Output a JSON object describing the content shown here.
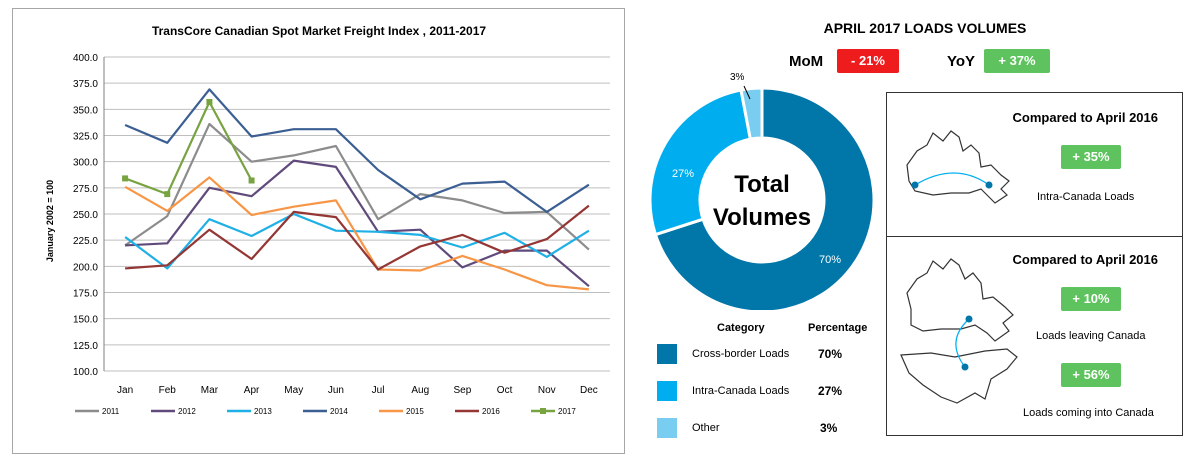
{
  "chart_data": [
    {
      "type": "line",
      "title": "TransCore Canadian Spot Market Freight Index , 2011-2017",
      "ylabel": "January  2002 = 100",
      "xlabel": "",
      "categories": [
        "Jan",
        "Feb",
        "Mar",
        "Apr",
        "May",
        "Jun",
        "Jul",
        "Aug",
        "Sep",
        "Oct",
        "Nov",
        "Dec"
      ],
      "ylim": [
        100,
        400
      ],
      "yticks": [
        "100.0",
        "125.0",
        "150.0",
        "175.0",
        "200.0",
        "225.0",
        "250.0",
        "275.0",
        "300.0",
        "325.0",
        "350.0",
        "375.0",
        "400.0"
      ],
      "grid": true,
      "legend_position": "bottom",
      "series": [
        {
          "name": "2011",
          "color": "#8c8c8c",
          "values": [
            220,
            248,
            336,
            300,
            306,
            315,
            245,
            269,
            263,
            251,
            252,
            216
          ]
        },
        {
          "name": "2012",
          "color": "#604a7b",
          "values": [
            220,
            222,
            275,
            267,
            301,
            295,
            233,
            235,
            199,
            215,
            215,
            181
          ]
        },
        {
          "name": "2013",
          "color": "#1fb0e6",
          "values": [
            228,
            198,
            245,
            229,
            250,
            234,
            233,
            230,
            218,
            232,
            209,
            234
          ]
        },
        {
          "name": "2014",
          "color": "#3b5f93",
          "values": [
            335,
            318,
            369,
            324,
            331,
            331,
            292,
            264,
            279,
            281,
            252,
            278
          ]
        },
        {
          "name": "2015",
          "color": "#f79646",
          "values": [
            276,
            253,
            285,
            249,
            257,
            263,
            197,
            196,
            210,
            197,
            182,
            178
          ]
        },
        {
          "name": "2016",
          "color": "#943634",
          "values": [
            198,
            201,
            235,
            207,
            252,
            247,
            197,
            219,
            230,
            213,
            226,
            258
          ]
        },
        {
          "name": "2017",
          "color": "#77a341",
          "values": [
            284,
            269,
            357,
            282,
            null,
            null,
            null,
            null,
            null,
            null,
            null,
            null
          ],
          "marker": "square"
        }
      ]
    },
    {
      "type": "pie",
      "title": "APRIL 2017 LOADS VOLUMES",
      "center_label": [
        "Total",
        "Volumes"
      ],
      "slices": [
        {
          "label": "Cross-border Loads",
          "value": 70,
          "display": "70%",
          "color": "#0077a8"
        },
        {
          "label": "Intra-Canada Loads",
          "value": 27,
          "display": "27%",
          "color": "#00aeef"
        },
        {
          "label": "Other",
          "value": 3,
          "display": "3%",
          "color": "#79cdf0"
        }
      ],
      "legend_headers": {
        "category": "Category",
        "percentage": "Percentage"
      }
    }
  ],
  "right": {
    "mom_label": "MoM",
    "mom_value": "- 21%",
    "yoy_label": "YoY",
    "yoy_value": "+ 37%",
    "box1": {
      "title": "Compared to April 2016",
      "value": "+ 35%",
      "caption": "Intra-Canada Loads"
    },
    "box2": {
      "title": "Compared to April 2016",
      "value_out": "+ 10%",
      "caption_out": "Loads leaving Canada",
      "value_in": "+ 56%",
      "caption_in": "Loads coming into Canada"
    }
  },
  "colors": {
    "mom": "#ee1c1c",
    "positive": "#5ec35e",
    "map_stroke": "#333333",
    "map_arc": "#00aeef",
    "map_dot": "#0077a8"
  }
}
